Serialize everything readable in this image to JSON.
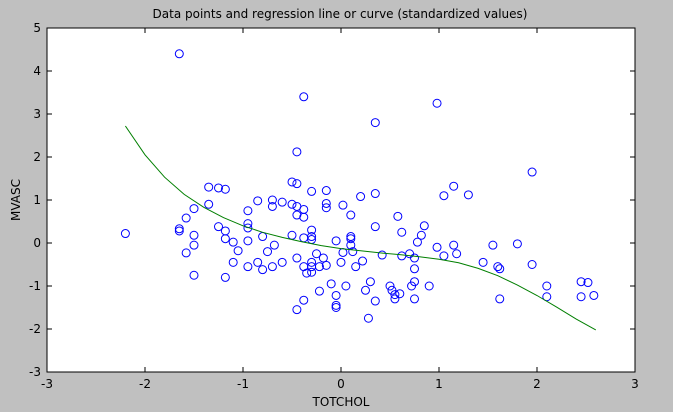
{
  "chart_data": {
    "type": "scatter",
    "title": "Data points and regression line or curve (standardized values)",
    "xlabel": "TOTCHOL",
    "ylabel": "MVASC",
    "xlim": [
      -3,
      3
    ],
    "ylim": [
      -3,
      5
    ],
    "xticks": [
      -3,
      -2,
      -1,
      0,
      1,
      2,
      3
    ],
    "yticks": [
      -3,
      -2,
      -1,
      0,
      1,
      2,
      3,
      4,
      5
    ],
    "grid": false,
    "colors": {
      "points": "#0000ff",
      "curve": "#007f00",
      "figure_bg": "#c0c0c0",
      "axes_bg": "#ffffff"
    },
    "series": [
      {
        "type": "scatter",
        "marker": "circle-open",
        "points": [
          [
            -2.2,
            0.22
          ],
          [
            -1.65,
            4.4
          ],
          [
            -1.65,
            0.33
          ],
          [
            -1.65,
            0.28
          ],
          [
            -1.58,
            0.58
          ],
          [
            -1.58,
            -0.23
          ],
          [
            -1.5,
            0.8
          ],
          [
            -1.5,
            0.18
          ],
          [
            -1.5,
            -0.05
          ],
          [
            -1.5,
            -0.75
          ],
          [
            -1.35,
            1.3
          ],
          [
            -1.35,
            0.9
          ],
          [
            -1.25,
            1.28
          ],
          [
            -1.25,
            0.38
          ],
          [
            -1.18,
            1.25
          ],
          [
            -1.18,
            0.28
          ],
          [
            -1.18,
            0.1
          ],
          [
            -1.18,
            -0.8
          ],
          [
            -1.1,
            0.02
          ],
          [
            -1.1,
            -0.45
          ],
          [
            -1.05,
            -0.18
          ],
          [
            -0.95,
            0.75
          ],
          [
            -0.95,
            0.45
          ],
          [
            -0.95,
            0.35
          ],
          [
            -0.95,
            0.05
          ],
          [
            -0.95,
            -0.55
          ],
          [
            -0.85,
            0.98
          ],
          [
            -0.85,
            -0.45
          ],
          [
            -0.8,
            -0.62
          ],
          [
            -0.8,
            0.15
          ],
          [
            -0.75,
            -0.2
          ],
          [
            -0.7,
            1.0
          ],
          [
            -0.7,
            0.85
          ],
          [
            -0.7,
            -0.55
          ],
          [
            -0.68,
            -0.05
          ],
          [
            -0.6,
            0.95
          ],
          [
            -0.6,
            -0.45
          ],
          [
            -0.5,
            1.42
          ],
          [
            -0.5,
            0.9
          ],
          [
            -0.5,
            0.18
          ],
          [
            -0.45,
            2.12
          ],
          [
            -0.45,
            1.38
          ],
          [
            -0.45,
            0.85
          ],
          [
            -0.45,
            0.65
          ],
          [
            -0.45,
            -0.35
          ],
          [
            -0.45,
            -1.55
          ],
          [
            -0.38,
            3.4
          ],
          [
            -0.38,
            0.78
          ],
          [
            -0.38,
            0.6
          ],
          [
            -0.38,
            0.12
          ],
          [
            -0.38,
            -0.55
          ],
          [
            -0.38,
            -1.33
          ],
          [
            -0.35,
            -0.7
          ],
          [
            -0.3,
            1.2
          ],
          [
            -0.3,
            0.3
          ],
          [
            -0.3,
            0.15
          ],
          [
            -0.3,
            0.08
          ],
          [
            -0.3,
            -0.45
          ],
          [
            -0.3,
            -0.55
          ],
          [
            -0.3,
            -0.68
          ],
          [
            -0.25,
            -0.25
          ],
          [
            -0.22,
            -0.55
          ],
          [
            -0.22,
            -1.12
          ],
          [
            -0.18,
            -0.35
          ],
          [
            -0.15,
            1.22
          ],
          [
            -0.15,
            0.92
          ],
          [
            -0.15,
            0.82
          ],
          [
            -0.15,
            -0.52
          ],
          [
            -0.1,
            -0.95
          ],
          [
            -0.05,
            0.05
          ],
          [
            -0.05,
            -1.22
          ],
          [
            -0.05,
            -1.45
          ],
          [
            -0.05,
            -1.5
          ],
          [
            0.0,
            -0.45
          ],
          [
            0.02,
            0.88
          ],
          [
            0.02,
            -0.22
          ],
          [
            0.05,
            -1.0
          ],
          [
            0.1,
            0.15
          ],
          [
            0.1,
            0.65
          ],
          [
            0.1,
            0.1
          ],
          [
            0.1,
            -0.05
          ],
          [
            0.12,
            -0.2
          ],
          [
            0.15,
            -0.55
          ],
          [
            0.2,
            1.08
          ],
          [
            0.22,
            -0.42
          ],
          [
            0.25,
            -1.1
          ],
          [
            0.28,
            -1.75
          ],
          [
            0.3,
            -0.9
          ],
          [
            0.35,
            2.8
          ],
          [
            0.35,
            1.15
          ],
          [
            0.35,
            0.38
          ],
          [
            0.35,
            -1.35
          ],
          [
            0.42,
            -0.28
          ],
          [
            0.5,
            -1.0
          ],
          [
            0.52,
            -1.1
          ],
          [
            0.55,
            -1.2
          ],
          [
            0.55,
            -1.3
          ],
          [
            0.58,
            0.62
          ],
          [
            0.6,
            -1.18
          ],
          [
            0.62,
            0.25
          ],
          [
            0.62,
            -0.3
          ],
          [
            0.7,
            -0.25
          ],
          [
            0.72,
            -1.0
          ],
          [
            0.75,
            -0.35
          ],
          [
            0.75,
            -0.6
          ],
          [
            0.75,
            -0.9
          ],
          [
            0.75,
            -1.3
          ],
          [
            0.78,
            0.02
          ],
          [
            0.82,
            0.18
          ],
          [
            0.85,
            0.4
          ],
          [
            0.9,
            -1.0
          ],
          [
            0.98,
            3.25
          ],
          [
            0.98,
            -0.1
          ],
          [
            1.05,
            1.1
          ],
          [
            1.05,
            -0.3
          ],
          [
            1.15,
            1.32
          ],
          [
            1.15,
            -0.05
          ],
          [
            1.18,
            -0.25
          ],
          [
            1.3,
            1.12
          ],
          [
            1.45,
            -0.45
          ],
          [
            1.55,
            -0.05
          ],
          [
            1.6,
            -0.55
          ],
          [
            1.62,
            -1.3
          ],
          [
            1.62,
            -0.6
          ],
          [
            1.8,
            -0.02
          ],
          [
            1.95,
            1.65
          ],
          [
            1.95,
            -0.5
          ],
          [
            2.1,
            -1.0
          ],
          [
            2.1,
            -1.25
          ],
          [
            2.45,
            -0.9
          ],
          [
            2.45,
            -1.25
          ],
          [
            2.52,
            -0.92
          ],
          [
            2.58,
            -1.22
          ]
        ]
      },
      {
        "type": "line",
        "x": [
          -2.2,
          -2.0,
          -1.8,
          -1.6,
          -1.4,
          -1.2,
          -1.0,
          -0.8,
          -0.6,
          -0.4,
          -0.2,
          0.0,
          0.2,
          0.4,
          0.6,
          0.8,
          1.0,
          1.2,
          1.4,
          1.6,
          1.8,
          2.0,
          2.2,
          2.4,
          2.6
        ],
        "y": [
          2.72,
          2.05,
          1.53,
          1.13,
          0.83,
          0.59,
          0.4,
          0.25,
          0.13,
          0.03,
          -0.06,
          -0.13,
          -0.18,
          -0.23,
          -0.27,
          -0.32,
          -0.38,
          -0.46,
          -0.59,
          -0.76,
          -0.98,
          -1.22,
          -1.49,
          -1.77,
          -2.02
        ]
      }
    ]
  }
}
